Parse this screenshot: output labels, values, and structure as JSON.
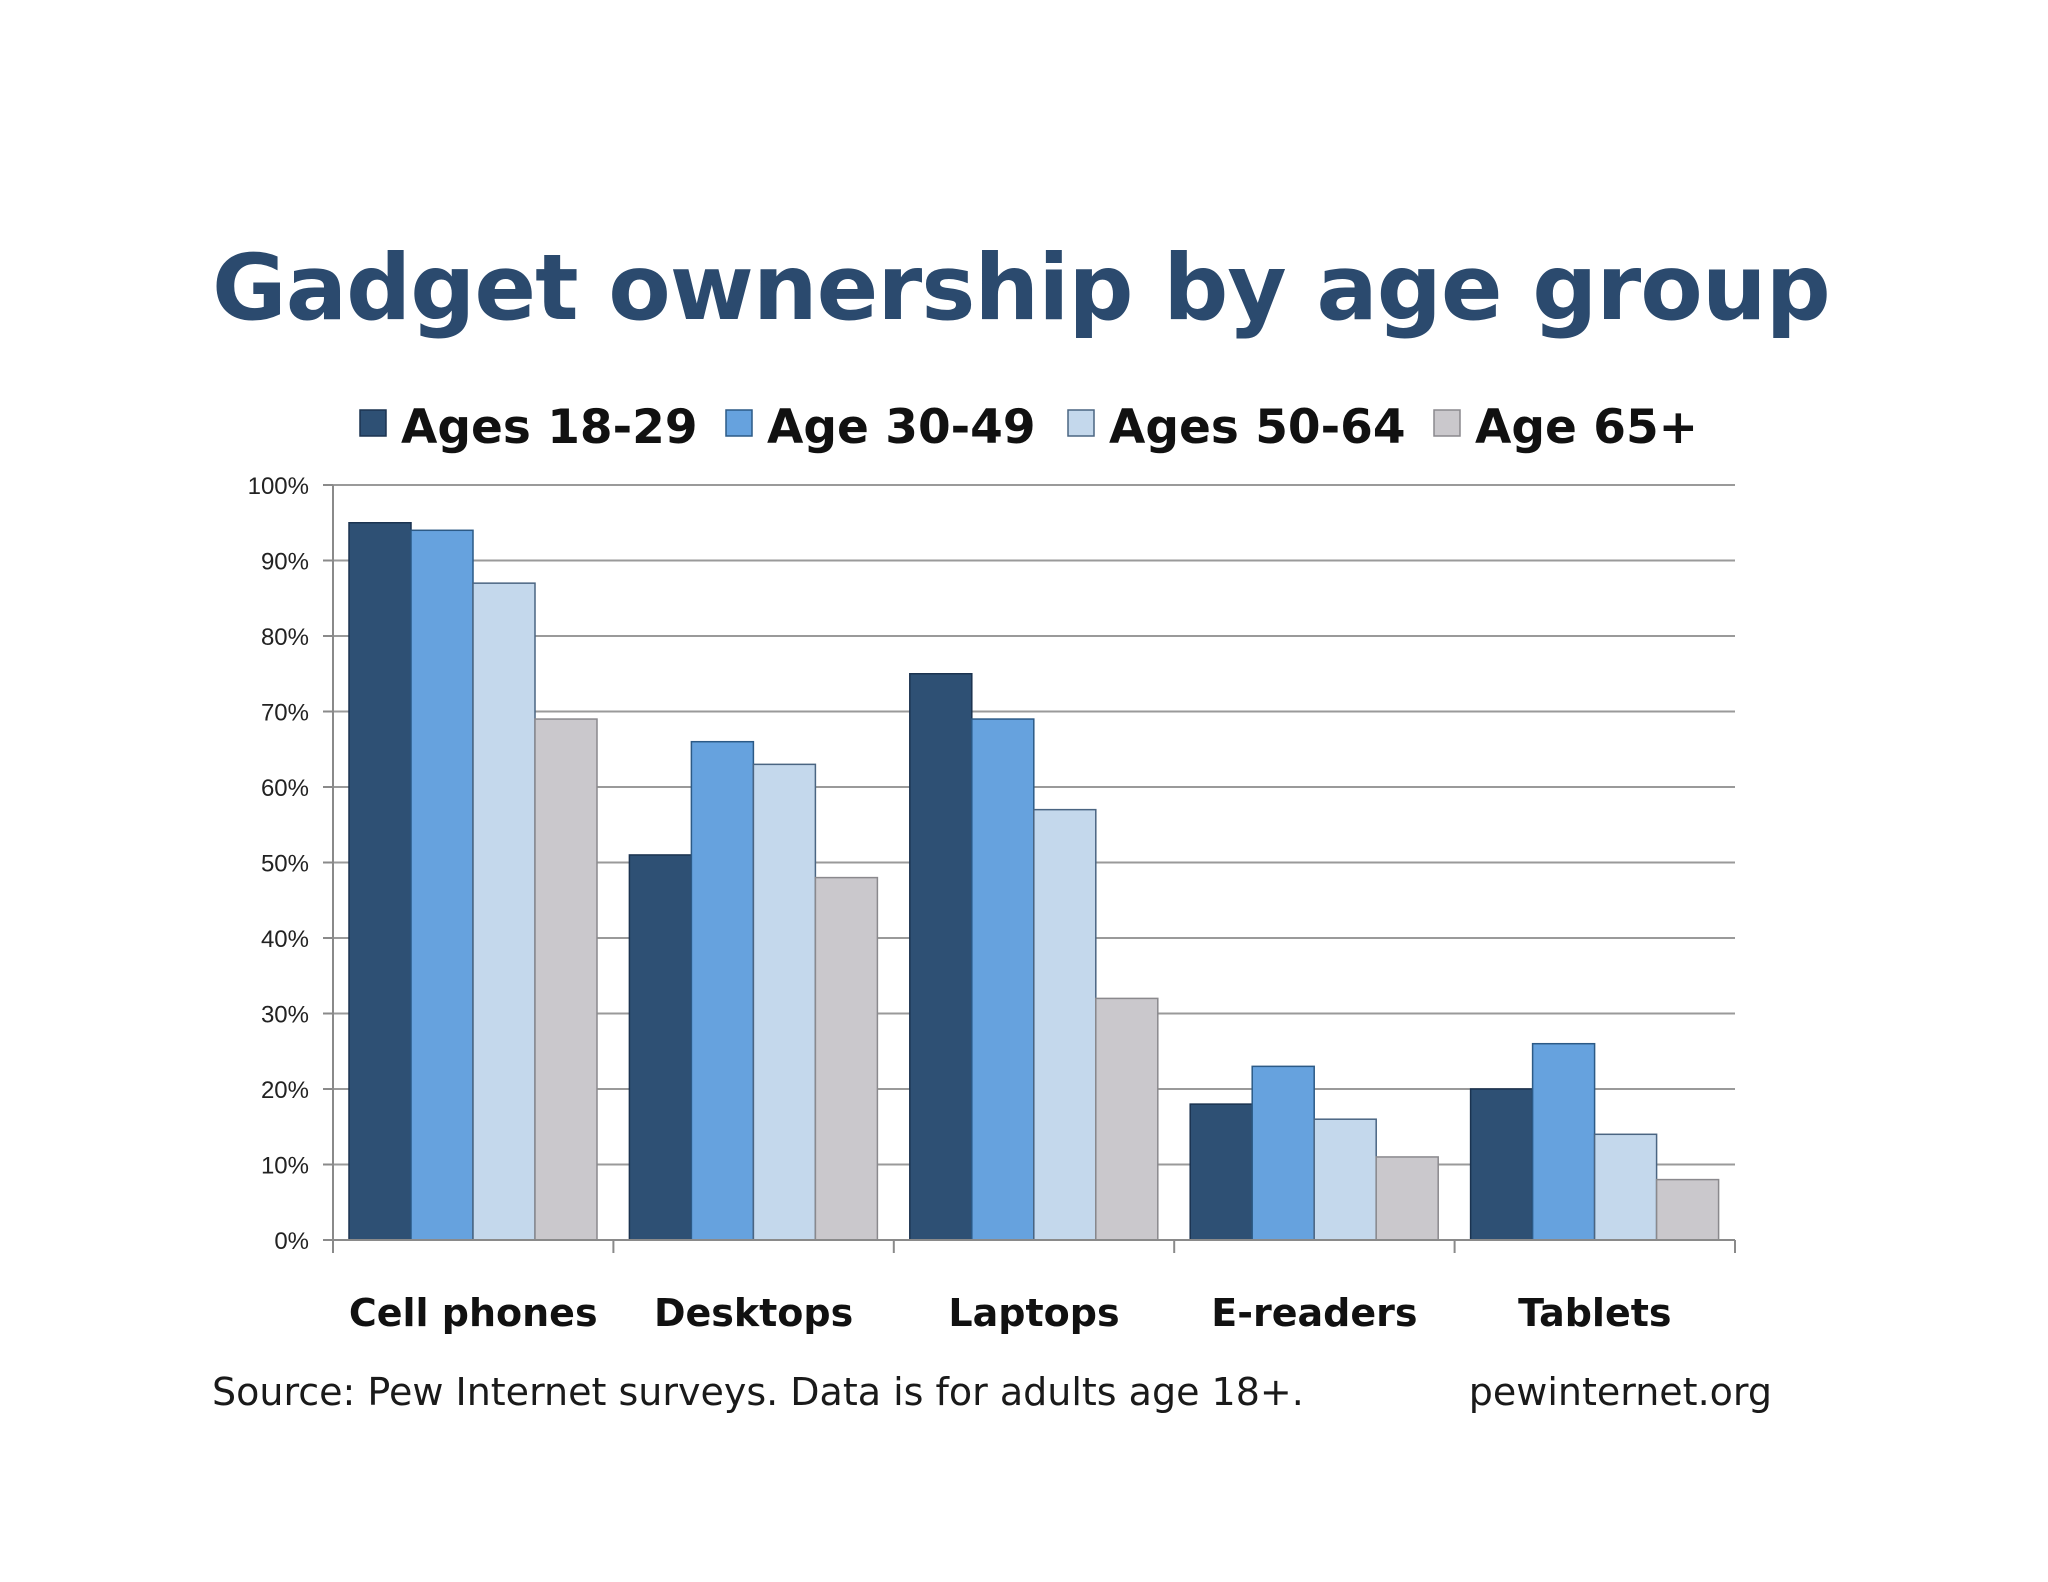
{
  "title": "Gadget ownership by age group",
  "source_note": "Source: Pew Internet surveys. Data is for adults age 18+.",
  "site_credit": "pewinternet.org",
  "chart_data": {
    "type": "bar",
    "title": "Gadget ownership by age group",
    "categories": [
      "Cell phones",
      "Desktops",
      "Laptops",
      "E-readers",
      "Tablets"
    ],
    "series": [
      {
        "name": "Ages 18-29",
        "values": [
          95,
          51,
          75,
          18,
          20
        ],
        "color": "#2e5074",
        "stroke": "#1b3350"
      },
      {
        "name": "Age 30-49",
        "values": [
          94,
          66,
          69,
          23,
          26
        ],
        "color": "#66a2de",
        "stroke": "#2c5a86"
      },
      {
        "name": "Ages 50-64",
        "values": [
          87,
          63,
          57,
          16,
          14
        ],
        "color": "#c4d8ec",
        "stroke": "#4a6582"
      },
      {
        "name": "Age 65+",
        "values": [
          69,
          48,
          32,
          11,
          8
        ],
        "color": "#cac8cc",
        "stroke": "#8a898d"
      }
    ],
    "y_ticks": [
      "0%",
      "10%",
      "20%",
      "30%",
      "40%",
      "50%",
      "60%",
      "70%",
      "80%",
      "90%",
      "100%"
    ],
    "ylim": [
      0,
      100
    ],
    "y_unit": "%",
    "xlabel": "",
    "ylabel": "",
    "grid": true,
    "legend_position": "top"
  }
}
